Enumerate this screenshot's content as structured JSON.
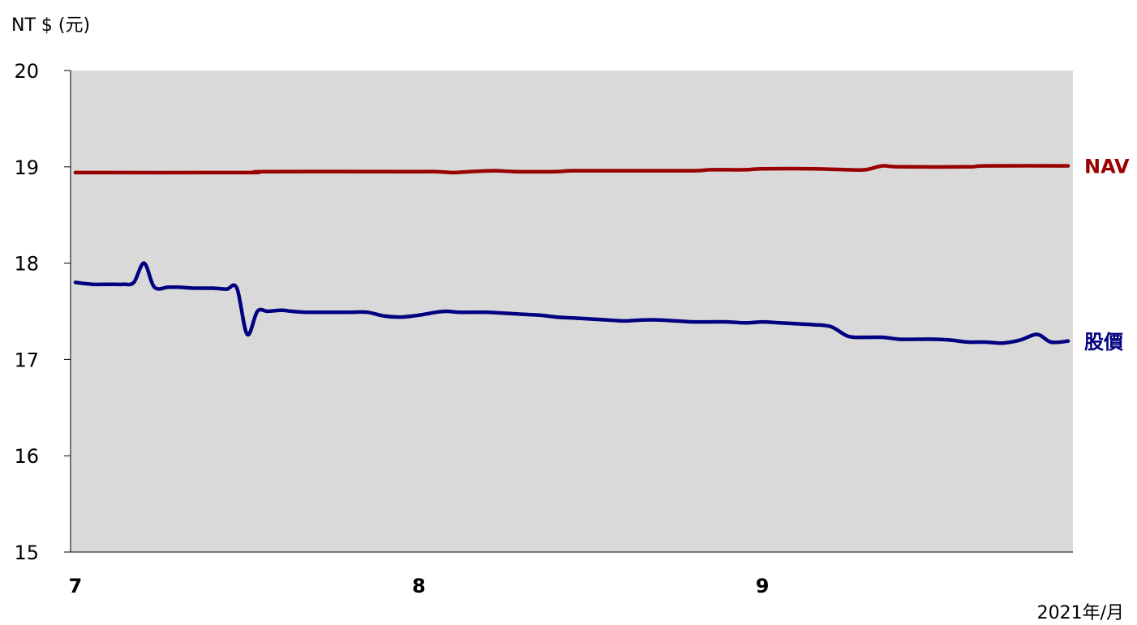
{
  "chart_data": {
    "type": "line",
    "ylabel": "NT $ (元)",
    "xlabel": "2021年/月",
    "ylim": [
      15,
      20
    ],
    "y_ticks": [
      15,
      16,
      17,
      18,
      19,
      20
    ],
    "x_range": [
      7,
      9.89
    ],
    "x_ticks": [
      {
        "value": 7,
        "label": "7"
      },
      {
        "value": 8,
        "label": "8"
      },
      {
        "value": 9,
        "label": "9"
      }
    ],
    "background": "#d9d9d9",
    "legend": "right (inline labels)",
    "grid": false,
    "series": [
      {
        "name": "NAV",
        "color": "#990000",
        "x": [
          7.0,
          7.5,
          7.55,
          8.0,
          8.05,
          8.1,
          8.15,
          8.22,
          8.28,
          8.4,
          8.45,
          8.6,
          8.8,
          8.85,
          8.95,
          9.0,
          9.15,
          9.25,
          9.3,
          9.35,
          9.4,
          9.6,
          9.65,
          9.89
        ],
        "values": [
          18.94,
          18.94,
          18.95,
          18.95,
          18.95,
          18.94,
          18.95,
          18.96,
          18.95,
          18.95,
          18.96,
          18.96,
          18.96,
          18.97,
          18.97,
          18.98,
          18.98,
          18.97,
          18.97,
          19.01,
          19.0,
          19.0,
          19.01,
          19.01
        ]
      },
      {
        "name": "股價",
        "color": "#000080",
        "x": [
          7.0,
          7.05,
          7.1,
          7.14,
          7.17,
          7.2,
          7.23,
          7.27,
          7.3,
          7.35,
          7.4,
          7.44,
          7.47,
          7.5,
          7.53,
          7.56,
          7.6,
          7.63,
          7.67,
          7.75,
          7.8,
          7.85,
          7.9,
          7.95,
          8.0,
          8.05,
          8.08,
          8.12,
          8.2,
          8.25,
          8.3,
          8.35,
          8.4,
          8.45,
          8.5,
          8.55,
          8.6,
          8.65,
          8.7,
          8.75,
          8.8,
          8.85,
          8.9,
          8.95,
          9.0,
          9.05,
          9.1,
          9.15,
          9.2,
          9.25,
          9.3,
          9.35,
          9.4,
          9.45,
          9.5,
          9.55,
          9.6,
          9.65,
          9.7,
          9.75,
          9.8,
          9.84,
          9.89
        ],
        "values": [
          17.8,
          17.78,
          17.78,
          17.78,
          17.8,
          18.0,
          17.75,
          17.75,
          17.75,
          17.74,
          17.74,
          17.73,
          17.74,
          17.26,
          17.5,
          17.5,
          17.51,
          17.5,
          17.49,
          17.49,
          17.49,
          17.49,
          17.45,
          17.44,
          17.46,
          17.49,
          17.5,
          17.49,
          17.49,
          17.48,
          17.47,
          17.46,
          17.44,
          17.43,
          17.42,
          17.41,
          17.4,
          17.41,
          17.41,
          17.4,
          17.39,
          17.39,
          17.39,
          17.38,
          17.39,
          17.38,
          17.37,
          17.36,
          17.34,
          17.24,
          17.23,
          17.23,
          17.21,
          17.21,
          17.21,
          17.2,
          17.18,
          17.18,
          17.17,
          17.2,
          17.26,
          17.18,
          17.19
        ]
      }
    ]
  }
}
